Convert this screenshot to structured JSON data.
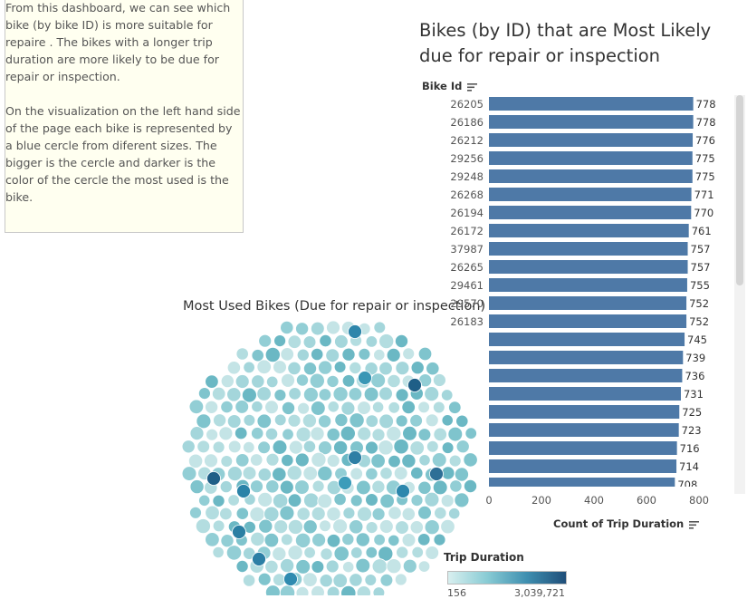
{
  "notes": {
    "paragraph1": "From this dashboard, we can see which bike (by bike ID) is more suitable for repaire . The bikes with a longer trip duration are more likely to be due for repair or inspection.",
    "paragraph2": "On the visualization on the left hand side of the page each bike is represented by a blue cercle from diferent sizes. The  bigger is the cercle and darker is the color of the cercle the most used is the bike."
  },
  "bubble_title": "Most Used Bikes (Due for repair or inspection)",
  "legend": {
    "title": "Trip Duration",
    "min_label": "156",
    "max_label": "3,039,721"
  },
  "chart_data": [
    {
      "type": "bar",
      "title": "Bikes (by ID) that are Most Likely due for repair or inspection",
      "ylabel": "Bike Id",
      "xlabel": "Count of Trip Duration",
      "categories": [
        "26205",
        "26186",
        "26212",
        "29256",
        "29248",
        "26268",
        "26194",
        "26172",
        "37987",
        "26265",
        "29461",
        "29570",
        "26183",
        "",
        "",
        "",
        "",
        "",
        "",
        "",
        "",
        ""
      ],
      "values": [
        778,
        778,
        776,
        775,
        775,
        771,
        770,
        761,
        757,
        757,
        755,
        752,
        752,
        745,
        739,
        736,
        731,
        725,
        723,
        716,
        714,
        708
      ],
      "xlim": [
        0,
        800
      ],
      "xticks": [
        0,
        200,
        400,
        600,
        800
      ],
      "bar_color": "#4e79a7"
    },
    {
      "type": "scatter",
      "title": "Most Used Bikes (Due for repair or inspection)",
      "color_scale": {
        "min": 156,
        "max": 3039721,
        "colors": [
          "#d8efef",
          "#1f4e79"
        ]
      }
    }
  ]
}
